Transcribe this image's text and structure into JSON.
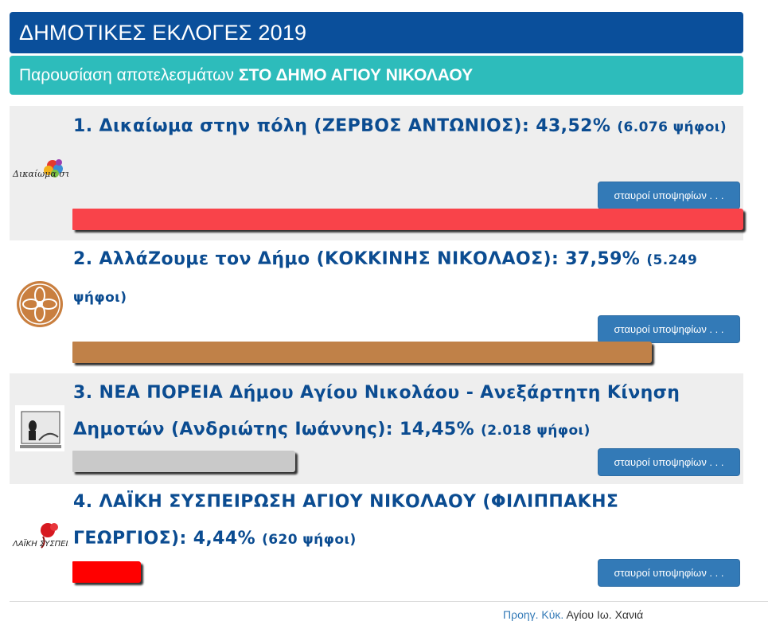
{
  "header": {
    "title": "ΔΗΜΟΤΙΚΕΣ ΕΚΛΟΓΕΣ 2019",
    "subtitle_prefix": "Παρουσίαση αποτελεσμάτων",
    "subtitle_bold": "ΣΤΟ ΔΗΜΟ ΑΓΙΟΥ ΝΙΚΟΛΑΟΥ"
  },
  "results": [
    {
      "label": "1. Δικαίωμα στην πόλη (ΖΕΡΒΟΣ ΑΝΤΩΝΙΟΣ): 43,52%",
      "votes": "(6.076 ψήφοι)",
      "percent": 43.52,
      "color": "#f9434a",
      "button": "σταυροί υποψηφίων . . .",
      "logo_text": "Δικαίωμα στην πόλη"
    },
    {
      "label": "2. ΑλλάΖουμε τον Δήμο (ΚΟΚΚΙΝΗΣ ΝΙΚΟΛΑΟΣ): 37,59%",
      "votes": "(5.249 ψήφοι)",
      "percent": 37.59,
      "color": "#c08148",
      "button": "σταυροί υποψηφίων . . ."
    },
    {
      "label": "3. ΝΕΑ ΠΟΡΕΙΑ Δήμου Αγίου Νικολάου - Ανεξάρτητη Κίνηση Δημοτών (Ανδριώτης Ιωάννης): 14,45%",
      "votes": "(2.018 ψήφοι)",
      "percent": 14.45,
      "color": "#c9c9c9",
      "button": "σταυροί υποψηφίων . . ."
    },
    {
      "label": "4. ΛΑΪΚΗ ΣΥΣΠΕΙΡΩΣΗ ΑΓΙΟΥ ΝΙΚΟΛΑΟΥ (ΦΙΛΙΠΠΑΚΗΣ ΓΕΩΡΓΙΟΣ): 4,44%",
      "votes": "(620 ψήφοι)",
      "percent": 4.44,
      "color": "#ff0000",
      "button": "σταυροί υποψηφίων . . .",
      "logo_text": "ΛΑΪΚΗ ΣΥΣΠΕΙΡΩΣΗ"
    }
  ],
  "footer": {
    "link_text": "Προηγ. Κύκ.",
    "rest_text": "Αγίου Ιω. Χανιά"
  }
}
